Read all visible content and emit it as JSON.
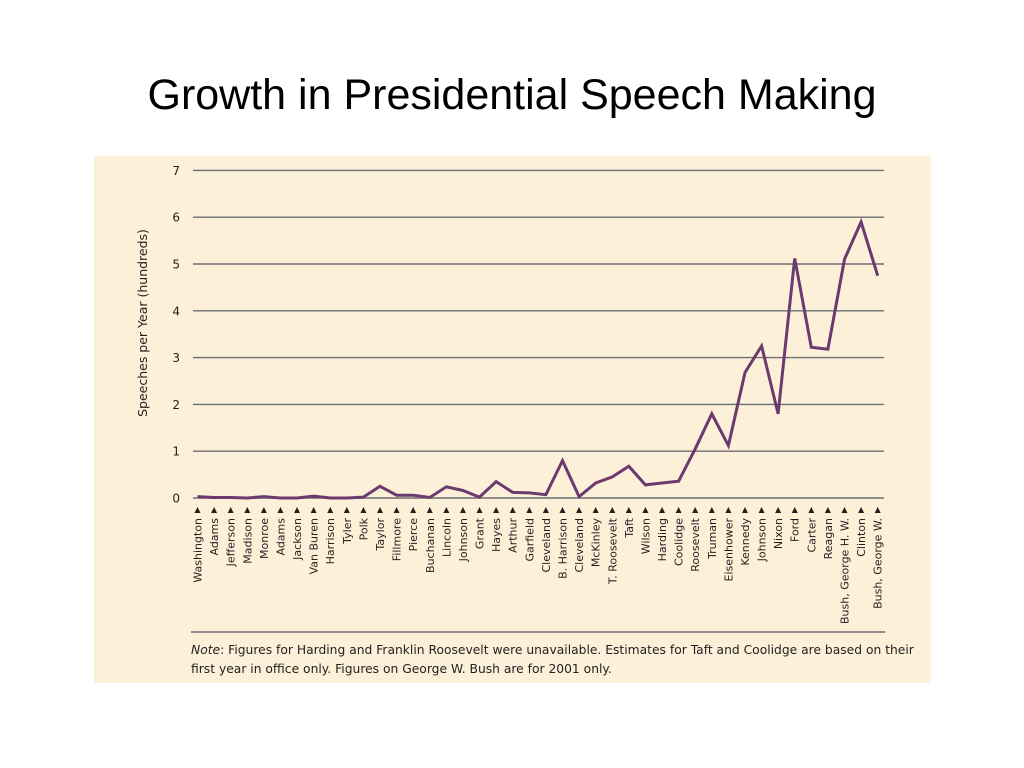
{
  "slide": {
    "title": "Growth in Presidential Speech Making"
  },
  "note": {
    "label": "Note",
    "text": ": Figures for Harding and Franklin Roosevelt were unavailable. Estimates for Taft and Coolidge are based on their first year in office only. Figures on George W. Bush are for 2001 only."
  },
  "colors": {
    "panel_background": "#fdf0d8",
    "line": "#6b3a6e",
    "grid": "#6d6e71",
    "text": "#231f20"
  },
  "chart_data": {
    "type": "line",
    "title": "",
    "ylabel": "Speeches per Year (hundreds)",
    "xlabel": "",
    "ylim": [
      0,
      7
    ],
    "yticks": [
      0,
      1,
      2,
      3,
      4,
      5,
      6,
      7
    ],
    "grid": true,
    "categories": [
      "Washington",
      "Adams",
      "Jefferson",
      "Madison",
      "Monroe",
      "Adams",
      "Jackson",
      "Van Buren",
      "Harrison",
      "Tyler",
      "Polk",
      "Taylor",
      "Fillmore",
      "Pierce",
      "Buchanan",
      "Lincoln",
      "Johnson",
      "Grant",
      "Hayes",
      "Arthur",
      "Garfield",
      "Cleveland",
      "B. Harrison",
      "Cleveland",
      "McKinley",
      "T. Roosevelt",
      "Taft",
      "Wilson",
      "Harding",
      "Coolidge",
      "Roosevelt",
      "Truman",
      "Eisenhower",
      "Kennedy",
      "Johnson",
      "Nixon",
      "Ford",
      "Carter",
      "Reagan",
      "Bush, George H. W.",
      "Clinton",
      "Bush, George W."
    ],
    "series": [
      {
        "values": [
          0.03,
          0.01,
          0.01,
          0.0,
          0.03,
          0.0,
          0.0,
          0.04,
          0.0,
          0.0,
          0.02,
          0.25,
          0.06,
          0.06,
          0.01,
          0.24,
          0.16,
          0.02,
          0.35,
          0.12,
          0.11,
          0.07,
          0.8,
          0.03,
          0.32,
          0.45,
          0.68,
          0.28,
          0.32,
          0.36,
          1.05,
          1.8,
          1.12,
          2.68,
          3.25,
          1.8,
          5.12,
          3.22,
          3.18,
          5.1,
          5.9,
          4.75
        ]
      }
    ]
  }
}
